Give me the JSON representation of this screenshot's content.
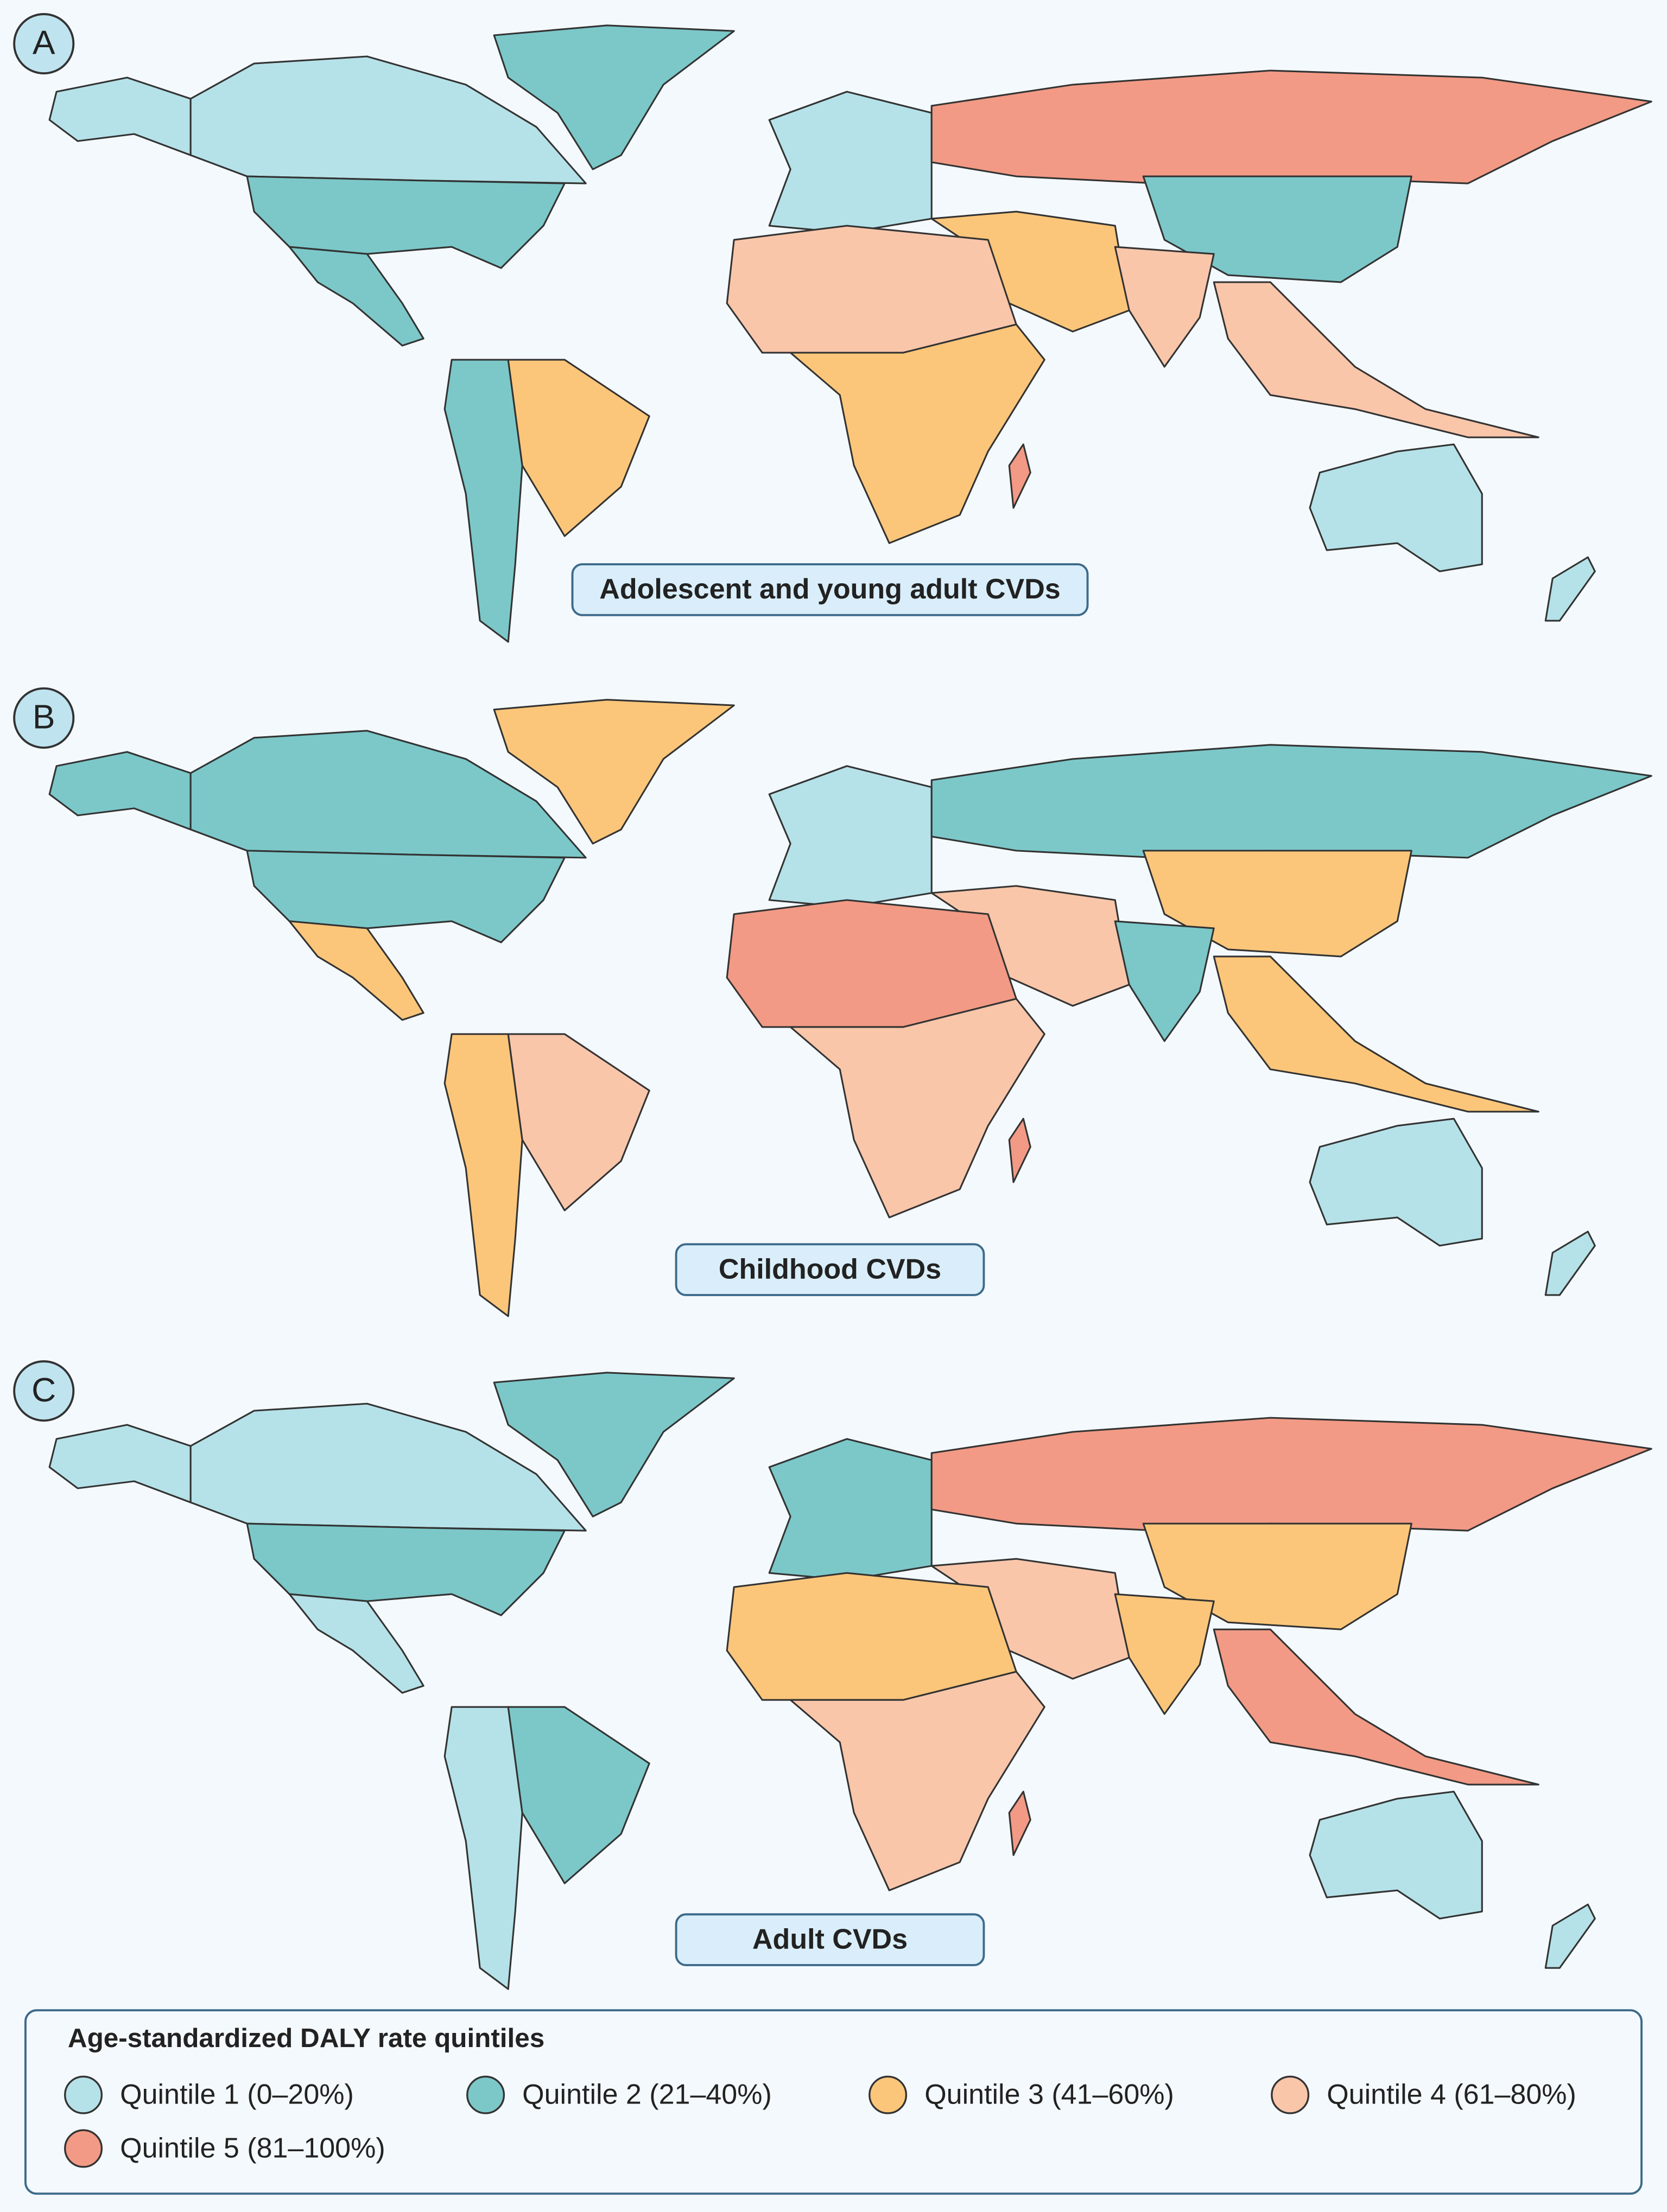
{
  "panels": [
    {
      "letter": "A",
      "title": "Adolescent and young adult CVDs"
    },
    {
      "letter": "B",
      "title": "Childhood CVDs"
    },
    {
      "letter": "C",
      "title": "Adult CVDs"
    }
  ],
  "legend": {
    "title": "Age-standardized DALY rate quintiles",
    "items": [
      {
        "label": "Quintile 1 (0–20%)",
        "color": "#b5e2e8"
      },
      {
        "label": "Quintile 2 (21–40%)",
        "color": "#7cc8c9"
      },
      {
        "label": "Quintile 3 (41–60%)",
        "color": "#fcc67a"
      },
      {
        "label": "Quintile 4 (61–80%)",
        "color": "#f9c6aa"
      },
      {
        "label": "Quintile 5 (81–100%)",
        "color": "#f29a85"
      }
    ]
  }
}
